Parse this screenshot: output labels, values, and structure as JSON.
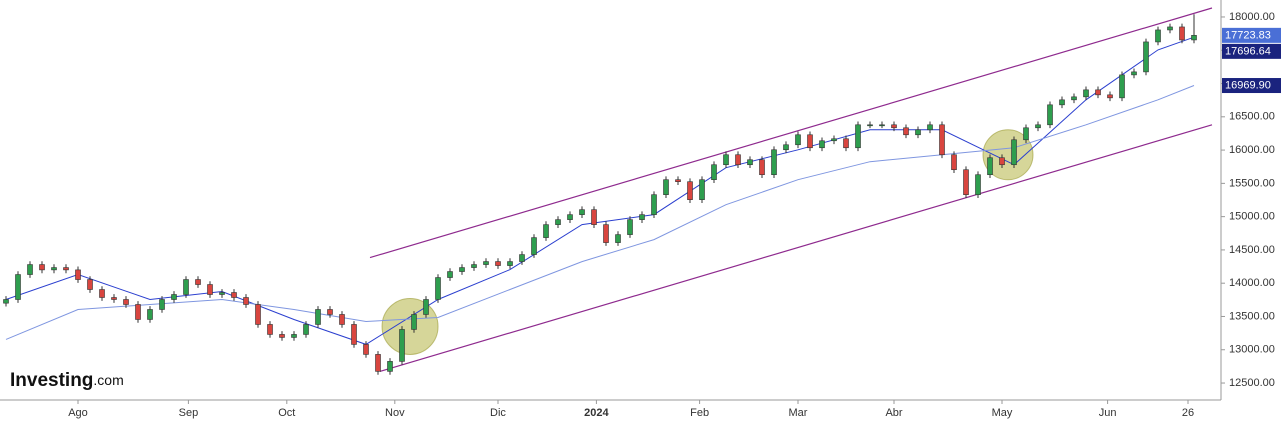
{
  "chart_data": {
    "type": "candlestick",
    "logo": {
      "brand": "Investing",
      "suffix": ".com"
    },
    "xlim": [
      -0.5,
      101.25
    ],
    "xticks": [
      {
        "value": 6,
        "label": "Ago"
      },
      {
        "value": 15.2,
        "label": "Sep"
      },
      {
        "value": 23.4,
        "label": "Oct"
      },
      {
        "value": 32.4,
        "label": "Nov"
      },
      {
        "value": 41,
        "label": "Dic"
      },
      {
        "value": 49.2,
        "label": "2024"
      },
      {
        "value": 57.8,
        "label": "Feb"
      },
      {
        "value": 66,
        "label": "Mar"
      },
      {
        "value": 74,
        "label": "Abr"
      },
      {
        "value": 83,
        "label": "May"
      },
      {
        "value": 91.8,
        "label": "Jun"
      },
      {
        "value": 98.5,
        "label": "26"
      }
    ],
    "ylim": [
      12245,
      18255
    ],
    "yticks": [
      {
        "value": 12500,
        "label": "12500.00"
      },
      {
        "value": 13000,
        "label": "13000.00"
      },
      {
        "value": 13500,
        "label": "13500.00"
      },
      {
        "value": 14000,
        "label": "14000.00"
      },
      {
        "value": 14500,
        "label": "14500.00"
      },
      {
        "value": 15000,
        "label": "15000.00"
      },
      {
        "value": 15500,
        "label": "15500.00"
      },
      {
        "value": 16000,
        "label": "16000.00"
      },
      {
        "value": 16500,
        "label": "16500.00"
      },
      {
        "value": 17000,
        "label": "17000.00"
      },
      {
        "value": 17500,
        "label": "17500.00"
      },
      {
        "value": 18000,
        "label": "18000.00"
      }
    ],
    "up_color": "#2e9e4e",
    "down_color": "#d9453f",
    "open": [
      13700,
      13755,
      14130,
      14280,
      14200,
      14235,
      14200,
      14055,
      13905,
      13785,
      13755,
      13680,
      13455,
      13605,
      13755,
      13830,
      14055,
      13980,
      13830,
      13860,
      13785,
      13680,
      13380,
      13230,
      13185,
      13230,
      13380,
      13605,
      13530,
      13380,
      13080,
      12930,
      12675,
      12825,
      13305,
      13530,
      13755,
      14085,
      14175,
      14235,
      14280,
      14325,
      14265,
      14325,
      14430,
      14685,
      14880,
      14955,
      15030,
      15105,
      14880,
      14610,
      14730,
      14955,
      15030,
      15330,
      15555,
      15525,
      15255,
      15555,
      15780,
      15930,
      15780,
      15855,
      15630,
      16005,
      16080,
      16230,
      16035,
      16140,
      16170,
      16035,
      16380,
      16380,
      16380,
      16335,
      16230,
      16305,
      16380,
      15930,
      15705,
      15330,
      15630,
      15885,
      15780,
      16155,
      16335,
      16380,
      16680,
      16755,
      16800,
      16905,
      16830,
      16785,
      17130,
      17175,
      17625,
      17805,
      17850,
      17655
    ],
    "high": [
      13805,
      14180,
      14330,
      14330,
      14285,
      14285,
      14250,
      14105,
      13955,
      13835,
      13805,
      13730,
      13655,
      13805,
      13880,
      14105,
      14105,
      14030,
      13910,
      13910,
      13835,
      13730,
      13430,
      13280,
      13280,
      13430,
      13655,
      13655,
      13580,
      13430,
      13130,
      12980,
      12875,
      13355,
      13580,
      13805,
      14135,
      14225,
      14285,
      14330,
      14375,
      14375,
      14375,
      14480,
      14735,
      14930,
      15005,
      15080,
      15155,
      15155,
      14930,
      14780,
      15005,
      15080,
      15380,
      15605,
      15605,
      15575,
      15605,
      15830,
      15980,
      15980,
      15905,
      15905,
      16055,
      16130,
      16280,
      16280,
      16190,
      16220,
      16220,
      16430,
      16430,
      16430,
      16430,
      16385,
      16355,
      16430,
      16430,
      15980,
      15755,
      15680,
      15935,
      15935,
      16205,
      16385,
      16430,
      16730,
      16805,
      16850,
      16955,
      16955,
      16880,
      17180,
      17225,
      17675,
      17855,
      17900,
      17900,
      18040
    ],
    "low": [
      13650,
      13705,
      14080,
      14150,
      14150,
      14150,
      14005,
      13855,
      13735,
      13705,
      13630,
      13405,
      13405,
      13555,
      13705,
      13780,
      13930,
      13780,
      13780,
      13735,
      13630,
      13330,
      13180,
      13135,
      13135,
      13180,
      13330,
      13480,
      13330,
      13030,
      12880,
      12625,
      12625,
      12775,
      13255,
      13480,
      13705,
      14035,
      14125,
      14185,
      14230,
      14215,
      14215,
      14275,
      14380,
      14635,
      14830,
      14905,
      14980,
      14830,
      14560,
      14560,
      14680,
      14905,
      14980,
      15280,
      15475,
      15205,
      15205,
      15505,
      15730,
      15730,
      15730,
      15580,
      15580,
      15955,
      16030,
      15985,
      15985,
      16090,
      15985,
      15985,
      16330,
      16330,
      16285,
      16180,
      16180,
      16255,
      15880,
      15655,
      15280,
      15280,
      15580,
      15730,
      15730,
      16105,
      16285,
      16330,
      16630,
      16705,
      16750,
      16780,
      16735,
      16735,
      17080,
      17125,
      17575,
      17755,
      17605,
      17605
    ],
    "close": [
      13755,
      14130,
      14280,
      14200,
      14235,
      14200,
      14055,
      13905,
      13785,
      13755,
      13680,
      13455,
      13605,
      13755,
      13830,
      14055,
      13980,
      13830,
      13860,
      13785,
      13680,
      13380,
      13230,
      13185,
      13230,
      13380,
      13605,
      13530,
      13380,
      13080,
      12930,
      12675,
      12825,
      13305,
      13530,
      13755,
      14085,
      14175,
      14235,
      14280,
      14325,
      14265,
      14325,
      14430,
      14685,
      14880,
      14955,
      15030,
      15105,
      14880,
      14610,
      14730,
      14955,
      15030,
      15330,
      15555,
      15525,
      15255,
      15555,
      15780,
      15930,
      15780,
      15855,
      15630,
      16005,
      16080,
      16230,
      16035,
      16140,
      16170,
      16035,
      16380,
      16380,
      16380,
      16335,
      16230,
      16305,
      16380,
      15930,
      15705,
      15330,
      15630,
      15885,
      15780,
      16155,
      16335,
      16380,
      16680,
      16755,
      16800,
      16905,
      16830,
      16785,
      17130,
      17175,
      17625,
      17805,
      17850,
      17655,
      17723.83
    ],
    "ma_lines": [
      {
        "color": "#2b3fcf",
        "x": [
          0,
          6,
          12,
          18,
          24,
          30,
          36,
          42,
          48,
          54,
          60,
          66,
          72,
          78,
          84,
          90,
          96,
          99
        ],
        "values": [
          13755,
          14130,
          13755,
          13875,
          13455,
          13080,
          13755,
          14205,
          14880,
          15030,
          15735,
          16005,
          16305,
          16305,
          15780,
          16755,
          17505,
          17696.64
        ]
      },
      {
        "color": "#7f96e0",
        "x": [
          0,
          6,
          12,
          18,
          24,
          30,
          36,
          42,
          48,
          54,
          60,
          66,
          72,
          78,
          84,
          90,
          96,
          99
        ],
        "values": [
          13155,
          13605,
          13680,
          13755,
          13605,
          13425,
          13485,
          13905,
          14325,
          14655,
          15180,
          15555,
          15825,
          15930,
          16035,
          16380,
          16755,
          16969.9
        ]
      }
    ],
    "trendlines": [
      {
        "color": "#8e2a8e",
        "x": [
          30.33,
          100.5
        ],
        "values": [
          14385,
          18135
        ]
      },
      {
        "color": "#8e2a8e",
        "x": [
          31.17,
          100.5
        ],
        "values": [
          12675,
          16380
        ]
      }
    ],
    "highlights": {
      "color": "#b5b545",
      "x": [
        33.67,
        83.5
      ],
      "values": [
        13350,
        15930
      ]
    },
    "price_tags": [
      {
        "value": 17723.83,
        "label": "17723.83",
        "color": "#4a6fd6"
      },
      {
        "value": 17696.64,
        "label": "17696.64",
        "color": "#1a237e"
      },
      {
        "value": 16969.9,
        "label": "16969.90",
        "color": "#1a237e"
      }
    ]
  }
}
